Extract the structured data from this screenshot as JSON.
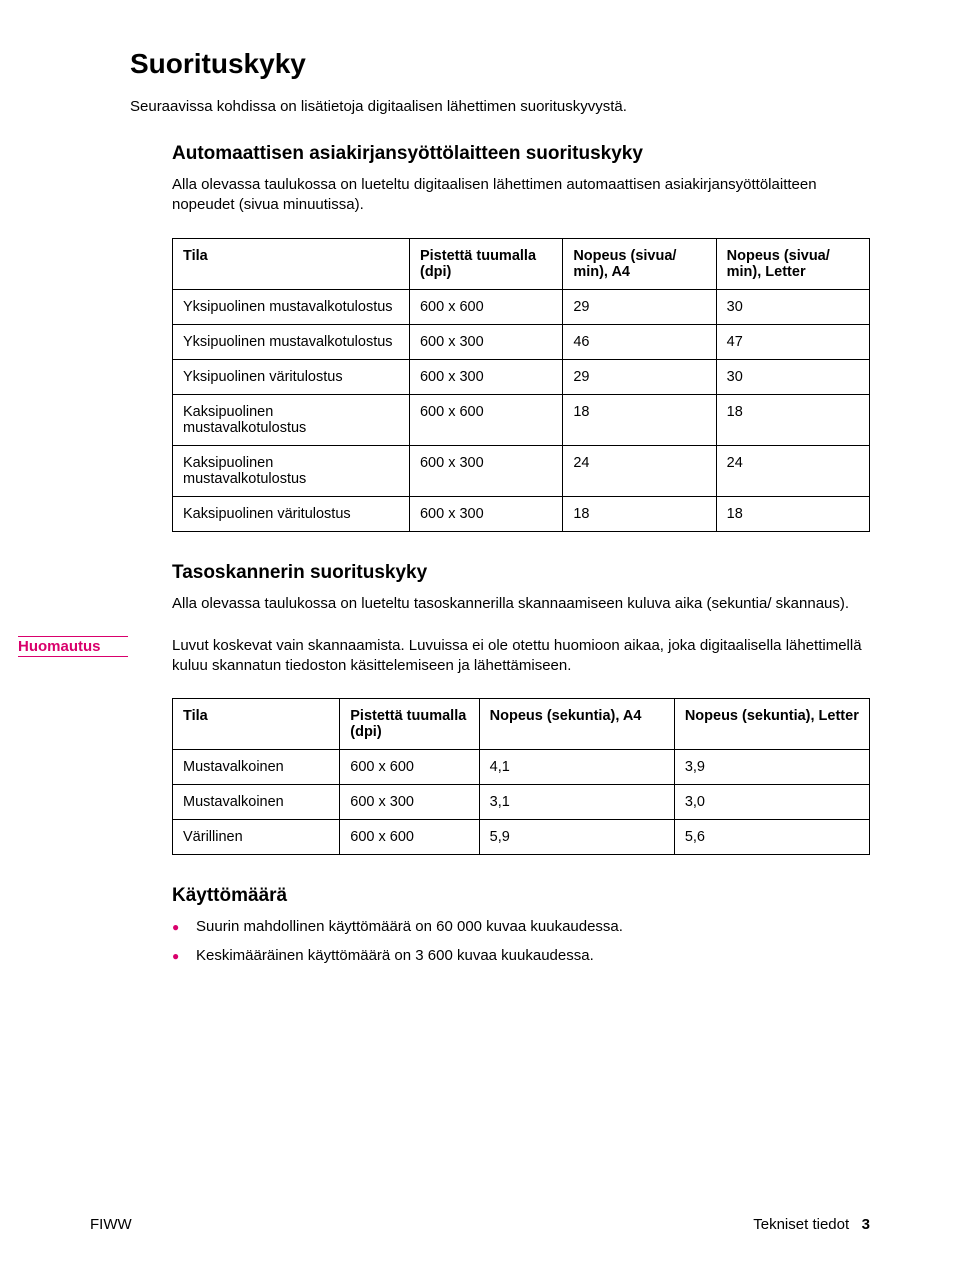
{
  "colors": {
    "accent": "#d9006c",
    "text": "#000000",
    "background": "#ffffff",
    "table_border": "#000000"
  },
  "heading": "Suorituskyky",
  "intro": "Seuraavissa kohdissa on lisätietoja digitaalisen lähettimen suorituskyvystä.",
  "section1": {
    "title": "Automaattisen asiakirjansyöttölaitteen suorituskyky",
    "para": "Alla olevassa taulukossa on lueteltu digitaalisen lähettimen automaattisen asiakirjansyöttölaitteen nopeudet (sivua minuutissa).",
    "table": {
      "headers": [
        "Tila",
        "Pistettä tuumalla (dpi)",
        "Nopeus (sivua/ min), A4",
        "Nopeus (sivua/ min), Letter"
      ],
      "rows": [
        [
          "Yksipuolinen mustavalkotulostus",
          "600 x 600",
          "29",
          "30"
        ],
        [
          "Yksipuolinen mustavalkotulostus",
          "600 x 300",
          "46",
          "47"
        ],
        [
          "Yksipuolinen väritulostus",
          "600 x 300",
          "29",
          "30"
        ],
        [
          "Kaksipuolinen mustavalkotulostus",
          "600 x 600",
          "18",
          "18"
        ],
        [
          "Kaksipuolinen mustavalkotulostus",
          "600 x 300",
          "24",
          "24"
        ],
        [
          "Kaksipuolinen väritulostus",
          "600 x 300",
          "18",
          "18"
        ]
      ]
    }
  },
  "section2": {
    "title": "Tasoskannerin suorituskyky",
    "para": "Alla olevassa taulukossa on lueteltu tasoskannerilla skannaamiseen kuluva aika (sekuntia/ skannaus).",
    "note_label": "Huomautus",
    "note_body": "Luvut koskevat vain skannaamista. Luvuissa ei ole otettu huomioon aikaa, joka digitaalisella lähettimellä kuluu skannatun tiedoston käsittelemiseen ja lähettämiseen.",
    "table": {
      "headers": [
        "Tila",
        "Pistettä tuumalla (dpi)",
        "Nopeus (sekuntia), A4",
        "Nopeus (sekuntia), Letter"
      ],
      "rows": [
        [
          "Mustavalkoinen",
          "600 x 600",
          "4,1",
          "3,9"
        ],
        [
          "Mustavalkoinen",
          "600 x 300",
          "3,1",
          "3,0"
        ],
        [
          "Värillinen",
          "600 x 600",
          "5,9",
          "5,6"
        ]
      ]
    }
  },
  "section3": {
    "title": "Käyttömäärä",
    "bullets": [
      "Suurin mahdollinen käyttömäärä on 60 000 kuvaa kuukaudessa.",
      "Keskimääräinen käyttömäärä on 3 600 kuvaa kuukaudessa."
    ]
  },
  "footer": {
    "left": "FIWW",
    "right_label": "Tekniset tiedot",
    "right_page": "3"
  }
}
